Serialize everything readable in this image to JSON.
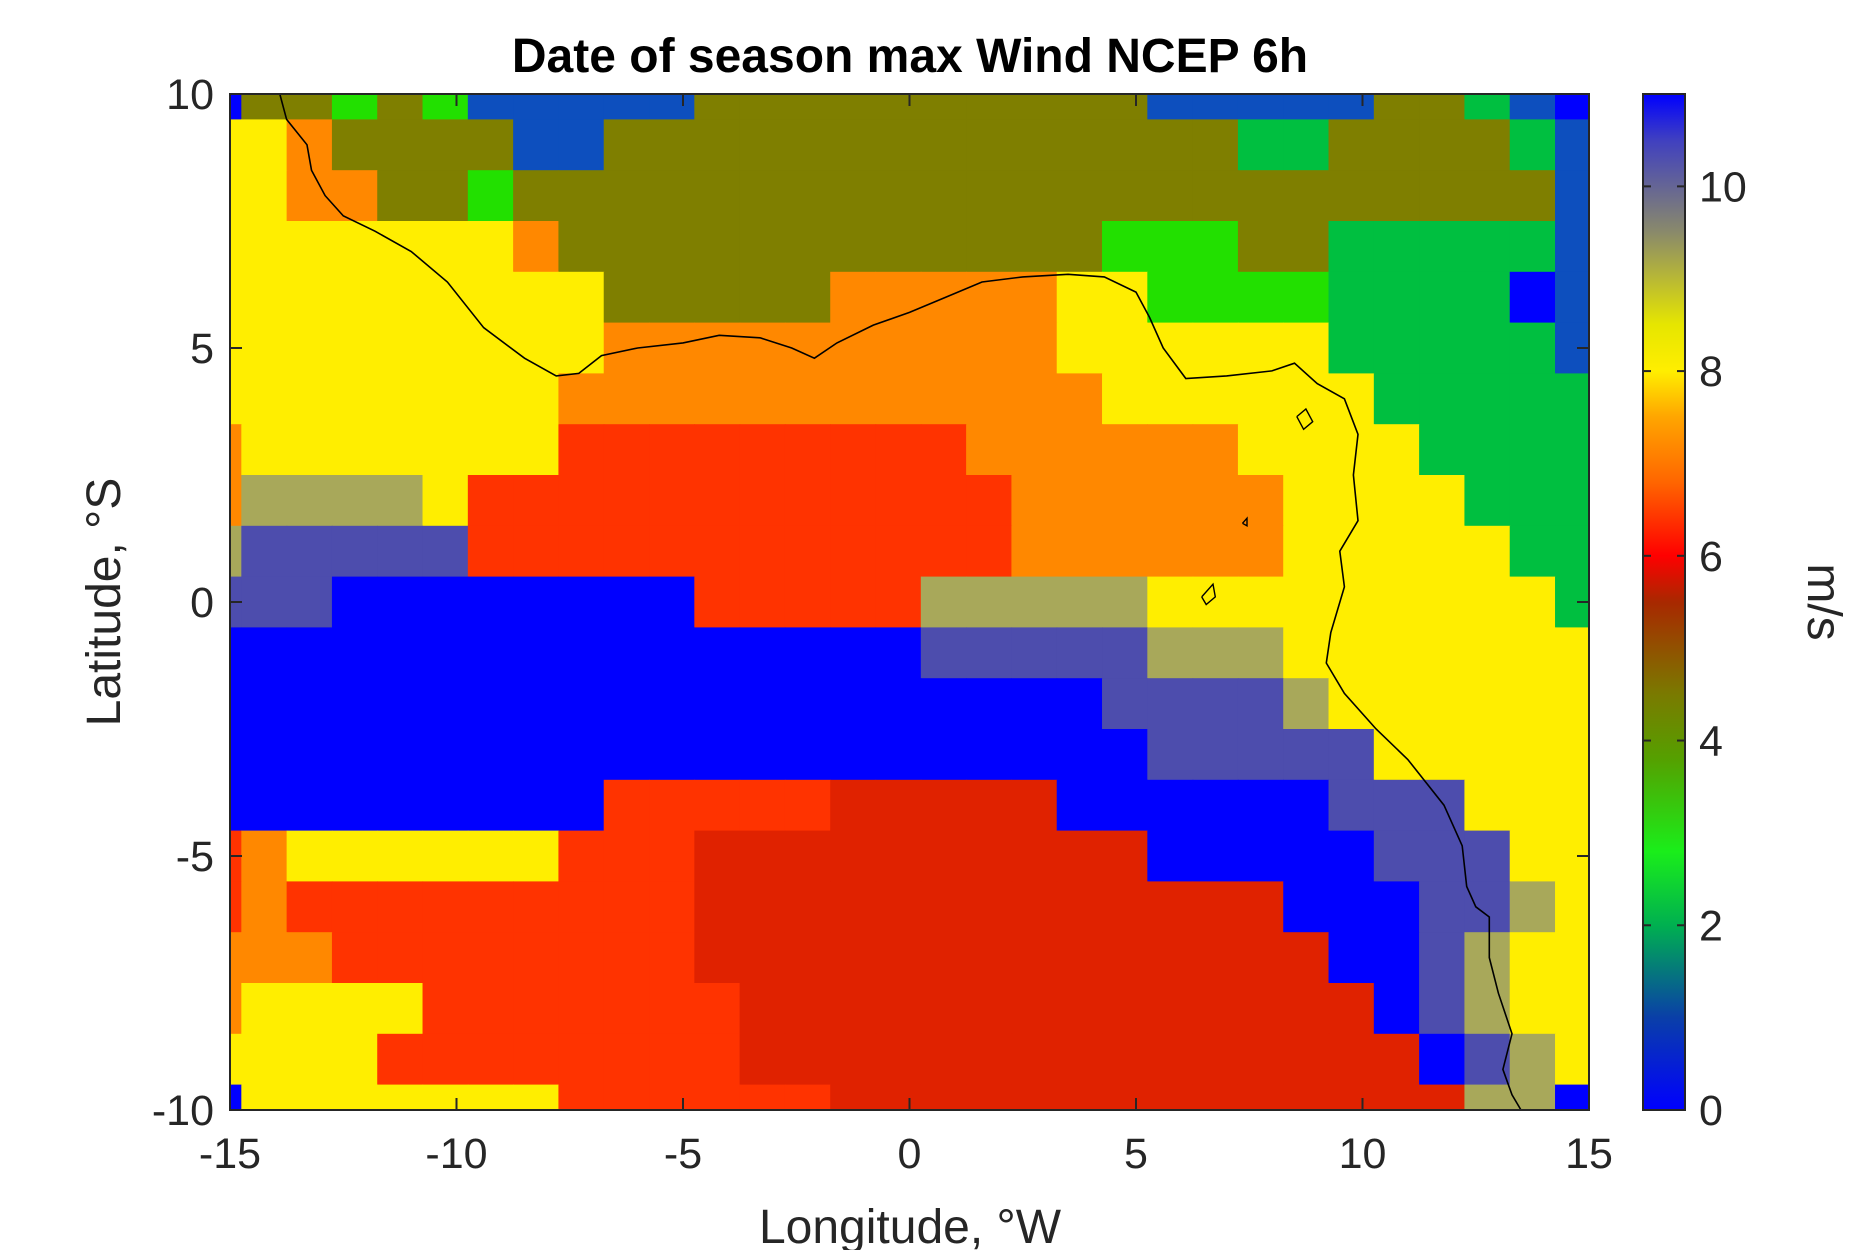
{
  "chart_data": {
    "type": "heatmap",
    "title": "Date of season max Wind NCEP 6h",
    "xlabel": "Longitude, °W",
    "ylabel": "Latitude, °S",
    "xlim": [
      -15,
      15
    ],
    "ylim": [
      -10,
      10
    ],
    "x_ticks": [
      "-15",
      "-10",
      "-5",
      "0",
      "5",
      "10",
      "15"
    ],
    "y_ticks": [
      "-10",
      "-5",
      "0",
      "5",
      "10"
    ],
    "colorbar": {
      "label": "m/s",
      "range": [
        0,
        11
      ],
      "ticks": [
        "0",
        "2",
        "4",
        "6",
        "8",
        "10"
      ],
      "stops": [
        {
          "v": 0.0,
          "c": "#0000ff"
        },
        {
          "v": 1.0,
          "c": "#0a3fa8"
        },
        {
          "v": 2.0,
          "c": "#00b050"
        },
        {
          "v": 2.8,
          "c": "#1aee1a"
        },
        {
          "v": 3.8,
          "c": "#55a000"
        },
        {
          "v": 4.5,
          "c": "#7a7a00"
        },
        {
          "v": 5.5,
          "c": "#a82800"
        },
        {
          "v": 6.0,
          "c": "#ff0000"
        },
        {
          "v": 6.8,
          "c": "#ff6600"
        },
        {
          "v": 7.5,
          "c": "#ffa500"
        },
        {
          "v": 8.0,
          "c": "#ffee00"
        },
        {
          "v": 8.5,
          "c": "#e6e600"
        },
        {
          "v": 9.5,
          "c": "#8a8a6a"
        },
        {
          "v": 10.5,
          "c": "#4040c0"
        },
        {
          "v": 11.0,
          "c": "#0000ff"
        }
      ]
    },
    "grid": {
      "lon0": -15.25,
      "lat_top": 10.0,
      "dlon": 1.0,
      "dlat": 1.0,
      "palette": {
        "A": "#0000ff",
        "B": "#0d4fbe",
        "C": "#00bf40",
        "D": "#22e000",
        "E": "#7f7f00",
        "F": "#ffee00",
        "G": "#ff8800",
        "H": "#ff3300",
        "I": "#e02200",
        "J": "#a8a85a",
        "K": "#4d4dad"
      },
      "legend": {
        "A": "~0 / ~11 m/s",
        "B": "~0.8 m/s",
        "C": "~2 m/s",
        "D": "~2.8 m/s",
        "E": "~4.4 m/s",
        "F": "~8 m/s",
        "G": "~7.2 m/s",
        "H": "~6.3 m/s",
        "I": "~5.8 m/s",
        "J": "~9.2 m/s",
        "K": "~10.3 m/s"
      },
      "rows": [
        "AEEDEDBBBBBEEEEEEEEEEBBBBBEECBA",
        "FFGEEEEBBEEEEEEEEEEEEEECCEEEECB",
        "FFGGEEDEEEEEEEEEEEEEEEEEEEEEEEB",
        "FFFFFFFGEEEEEEEEEEEEDDDEECCCCCB",
        "FFFFFFFFFEEEEEGGGGGFFDDDDCCCCAB",
        "FFFFFFFFFGGGGGGGGGGFFFFFFCCCCCB",
        "FFFFFFFFGGGGGGGGGGGGFFFFFFCCCCC",
        "GFFFFFFFHHHHHHHHHGGGGGGFFFFCCCC",
        "GJJJJFHHHHHHHHHHHHGGGGGGFFFFCCC",
        "JKKKKKHHHHHHHHHHHHGGGGGGFFFFFCC",
        "KKKAAAAAAAAHHHHHJJJJJFFFFFFFFFC",
        "AAAAAAAAAAAAAAAAKKKKKJJJFFFFFFF",
        "AAAAAAAAAAAAAAAAAAAAKKKKJFFFFFF",
        "AAAAAAAAAAAAAAAAAAAAAKKKKKFFFFF",
        "AAAAAAAAAHHHHHIIIIIAAAAAAKKKFFF",
        "HGFFFFFFHHHIIIIIIIIIIAAAAAKKKFF",
        "HGHHHHHHHHHIIIIIIIIIIIIIAAAKKJF",
        "GGGHHHHHHHHIIIIIIIIIIIIIIAAKJFF",
        "GFFFFHHHHHHHIIIIIIIIIIIIIIAKJFF",
        "FFFFHHHHHHHHIIIIIIIIIIIIIIIAKJF",
        "AFFFFFFFHHHHHHIIIIIIIIIIIIIIJJA"
      ]
    },
    "coastline": [
      [
        -13.9,
        10.0
      ],
      [
        -13.75,
        9.5
      ],
      [
        -13.3,
        9.0
      ],
      [
        -13.2,
        8.5
      ],
      [
        -12.9,
        8.0
      ],
      [
        -12.5,
        7.6
      ],
      [
        -11.8,
        7.3
      ],
      [
        -11.0,
        6.9
      ],
      [
        -10.2,
        6.3
      ],
      [
        -9.4,
        5.4
      ],
      [
        -8.5,
        4.8
      ],
      [
        -7.8,
        4.45
      ],
      [
        -7.3,
        4.5
      ],
      [
        -6.8,
        4.85
      ],
      [
        -6.0,
        5.0
      ],
      [
        -5.0,
        5.1
      ],
      [
        -4.2,
        5.25
      ],
      [
        -3.3,
        5.2
      ],
      [
        -2.6,
        5.0
      ],
      [
        -2.1,
        4.8
      ],
      [
        -1.6,
        5.1
      ],
      [
        -0.8,
        5.45
      ],
      [
        0.0,
        5.7
      ],
      [
        0.8,
        6.0
      ],
      [
        1.6,
        6.3
      ],
      [
        2.5,
        6.4
      ],
      [
        3.5,
        6.45
      ],
      [
        4.3,
        6.4
      ],
      [
        5.0,
        6.1
      ],
      [
        5.3,
        5.6
      ],
      [
        5.6,
        5.0
      ],
      [
        6.1,
        4.4
      ],
      [
        7.0,
        4.45
      ],
      [
        8.0,
        4.55
      ],
      [
        8.5,
        4.7
      ],
      [
        9.0,
        4.3
      ],
      [
        9.6,
        4.0
      ],
      [
        9.9,
        3.3
      ],
      [
        9.8,
        2.5
      ],
      [
        9.9,
        1.6
      ],
      [
        9.5,
        1.0
      ],
      [
        9.6,
        0.3
      ],
      [
        9.3,
        -0.6
      ],
      [
        9.2,
        -1.2
      ],
      [
        9.6,
        -1.8
      ],
      [
        10.3,
        -2.5
      ],
      [
        11.0,
        -3.1
      ],
      [
        11.8,
        -4.0
      ],
      [
        12.2,
        -4.8
      ],
      [
        12.3,
        -5.6
      ],
      [
        12.5,
        -6.0
      ],
      [
        12.8,
        -6.2
      ],
      [
        12.8,
        -7.0
      ],
      [
        13.0,
        -7.7
      ],
      [
        13.3,
        -8.5
      ],
      [
        13.1,
        -9.2
      ],
      [
        13.3,
        -9.7
      ],
      [
        13.5,
        -10.0
      ]
    ],
    "islands": [
      [
        [
          8.55,
          3.65
        ],
        [
          8.7,
          3.4
        ],
        [
          8.9,
          3.55
        ],
        [
          8.75,
          3.8
        ],
        [
          8.55,
          3.65
        ]
      ],
      [
        [
          6.45,
          0.1
        ],
        [
          6.7,
          0.35
        ],
        [
          6.75,
          0.1
        ],
        [
          6.55,
          -0.05
        ],
        [
          6.45,
          0.1
        ]
      ],
      [
        [
          7.35,
          1.55
        ],
        [
          7.45,
          1.65
        ],
        [
          7.45,
          1.5
        ],
        [
          7.35,
          1.55
        ]
      ]
    ]
  }
}
